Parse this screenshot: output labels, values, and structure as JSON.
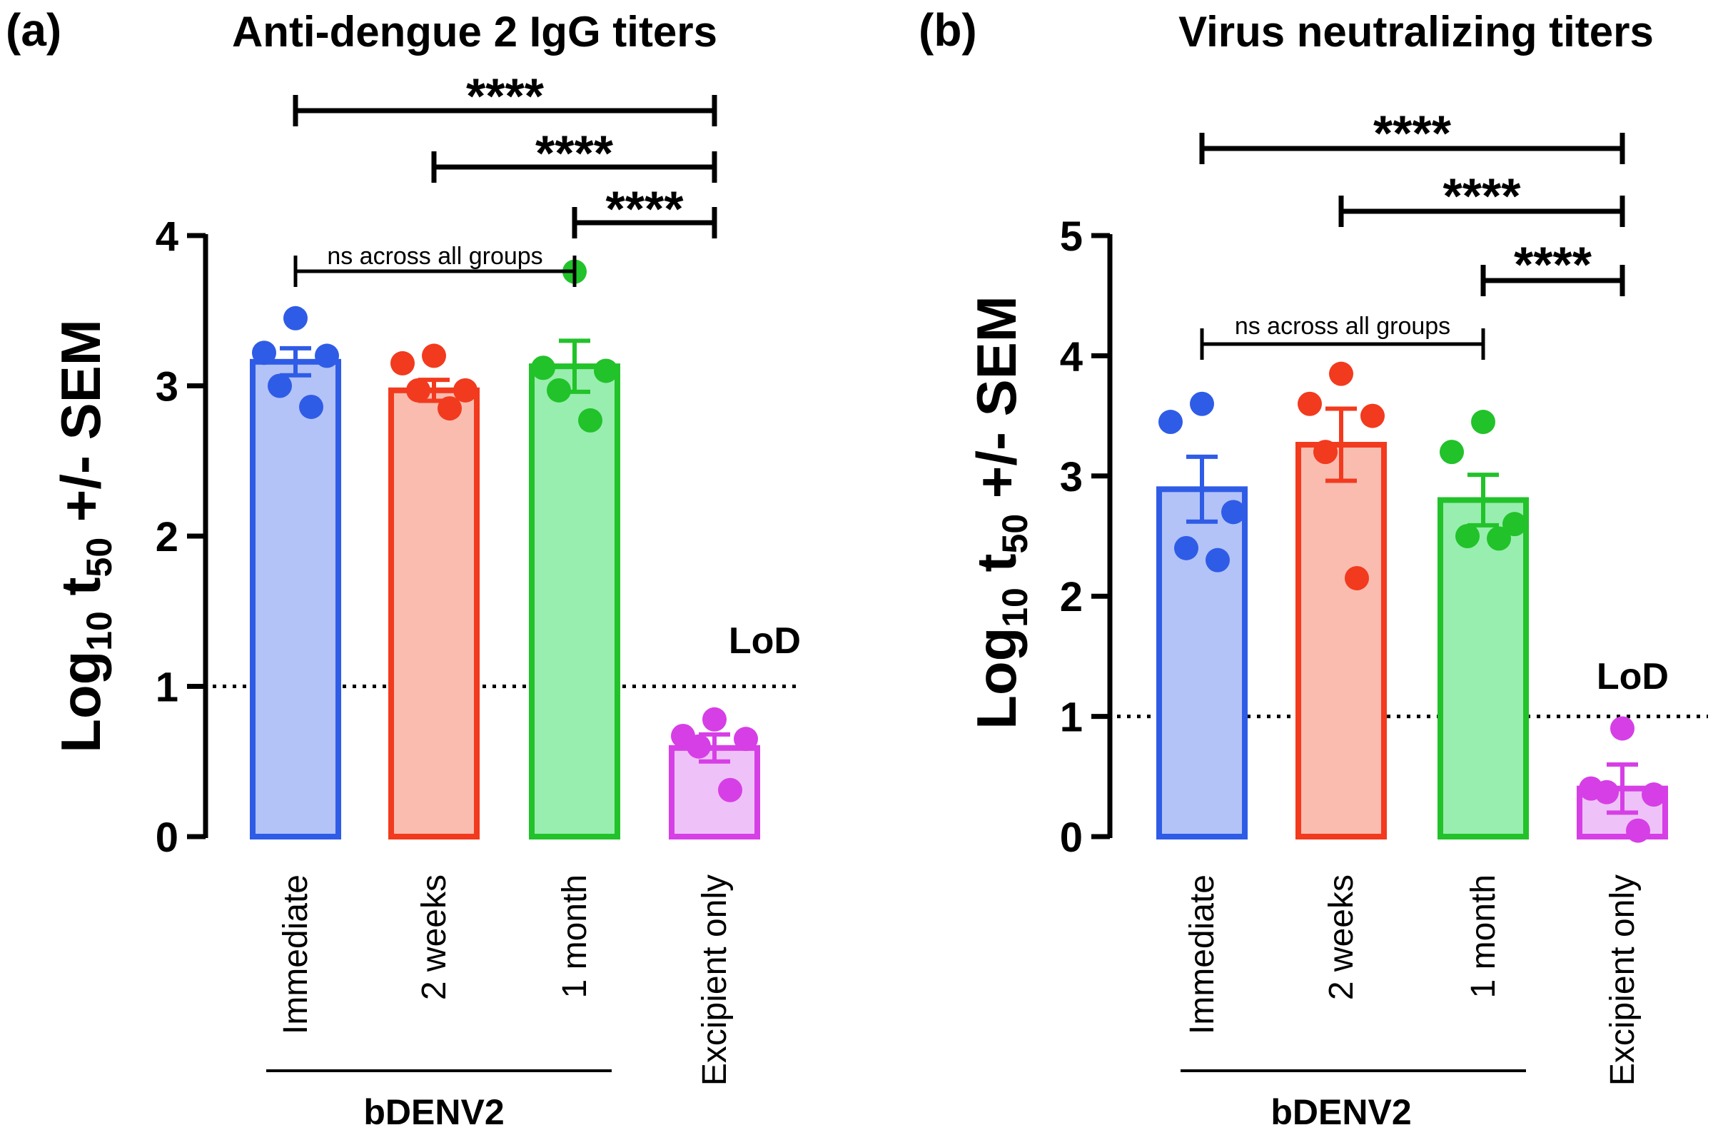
{
  "chart_data": [
    {
      "panel_letter": "(a)",
      "type": "bar",
      "title": "Anti-dengue 2 IgG titers",
      "ylabel": {
        "prefix": "Log",
        "sub1": "10",
        "mid": " t",
        "sub2": "50",
        "suffix": " +/- SEM"
      },
      "ylim": [
        0,
        4
      ],
      "yticks": [
        "0",
        "1",
        "2",
        "3",
        "4"
      ],
      "categories": [
        "Immediate",
        "2 weeks",
        "1 month",
        "Excipient only"
      ],
      "group_label": "bDENV2",
      "group_span": [
        0,
        2
      ],
      "bar_colors": [
        "#2f5ce6",
        "#f23a1e",
        "#22c22a",
        "#d63fe6"
      ],
      "fill_colors": [
        "#b3c3f7",
        "#fbbcb0",
        "#98eeae",
        "#eec2f8"
      ],
      "means": [
        3.16,
        2.97,
        3.13,
        0.59
      ],
      "sem": [
        0.09,
        0.07,
        0.17,
        0.09
      ],
      "points": [
        [
          3.45,
          3.22,
          3.2,
          3.0,
          2.86
        ],
        [
          3.2,
          3.15,
          2.97,
          2.97,
          2.85
        ],
        [
          3.76,
          3.12,
          3.1,
          2.97,
          2.77
        ],
        [
          0.78,
          0.67,
          0.65,
          0.6,
          0.31
        ]
      ],
      "lod": {
        "value": 1.0,
        "label": "LoD"
      },
      "ns": {
        "from": 0,
        "to": 2,
        "label": "ns across all groups"
      },
      "comparisons": [
        {
          "from": 0,
          "to": 3,
          "label": "****"
        },
        {
          "from": 1,
          "to": 3,
          "label": "****"
        },
        {
          "from": 2,
          "to": 3,
          "label": "****"
        }
      ]
    },
    {
      "panel_letter": "(b)",
      "type": "bar",
      "title": "Virus neutralizing titers",
      "ylabel": {
        "prefix": "Log",
        "sub1": "10",
        "mid": " t",
        "sub2": "50",
        "suffix": " +/- SEM"
      },
      "ylim": [
        0,
        5
      ],
      "yticks": [
        "0",
        "1",
        "2",
        "3",
        "4",
        "5"
      ],
      "categories": [
        "Immediate",
        "2 weeks",
        "1 month",
        "Excipient only"
      ],
      "group_label": "bDENV2",
      "group_span": [
        0,
        2
      ],
      "bar_colors": [
        "#2f5ce6",
        "#f23a1e",
        "#22c22a",
        "#d63fe6"
      ],
      "fill_colors": [
        "#b3c3f7",
        "#fbbcb0",
        "#98eeae",
        "#eec2f8"
      ],
      "means": [
        2.89,
        3.26,
        2.8,
        0.4
      ],
      "sem": [
        0.27,
        0.3,
        0.21,
        0.2
      ],
      "points": [
        [
          3.6,
          3.45,
          2.7,
          2.4,
          2.3
        ],
        [
          3.85,
          3.6,
          3.5,
          3.2,
          2.15
        ],
        [
          3.45,
          3.2,
          2.6,
          2.5,
          2.48
        ],
        [
          0.9,
          0.4,
          0.35,
          0.37,
          0.05
        ]
      ],
      "lod": {
        "value": 1.0,
        "label": "LoD"
      },
      "ns": {
        "from": 0,
        "to": 2,
        "label": "ns across all groups"
      },
      "comparisons": [
        {
          "from": 0,
          "to": 3,
          "label": "****"
        },
        {
          "from": 1,
          "to": 3,
          "label": "****"
        },
        {
          "from": 2,
          "to": 3,
          "label": "****"
        }
      ]
    }
  ]
}
